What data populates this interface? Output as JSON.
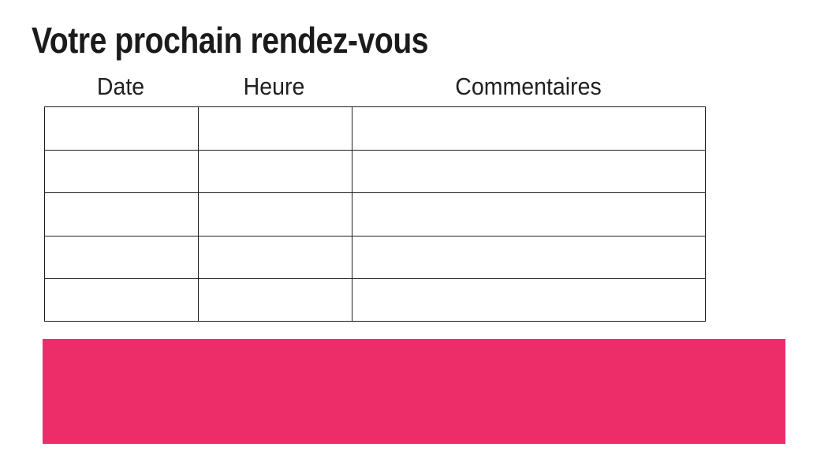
{
  "page": {
    "title": "Votre prochain rendez-vous"
  },
  "appointments_table": {
    "headers": [
      {
        "label": "Date"
      },
      {
        "label": "Heure"
      },
      {
        "label": "Commentaires"
      }
    ],
    "rows": [
      {
        "date": "",
        "heure": "",
        "commentaires": ""
      },
      {
        "date": "",
        "heure": "",
        "commentaires": ""
      },
      {
        "date": "",
        "heure": "",
        "commentaires": ""
      },
      {
        "date": "",
        "heure": "",
        "commentaires": ""
      },
      {
        "date": "",
        "heure": "",
        "commentaires": ""
      }
    ]
  },
  "banner": {
    "color": "#ED2D69"
  },
  "colors": {
    "text": "#1b1b1b",
    "table_border": "#1e1e1e",
    "background": "#ffffff"
  }
}
